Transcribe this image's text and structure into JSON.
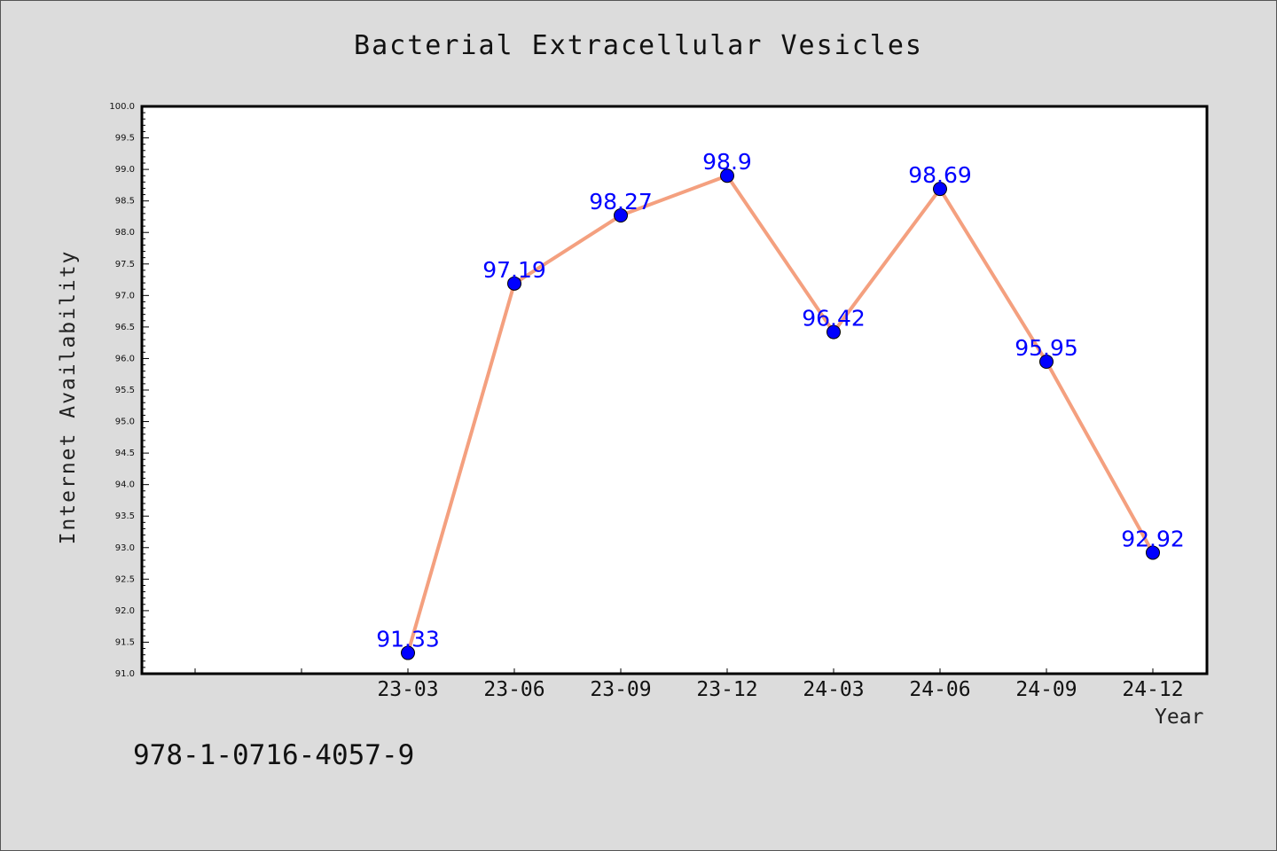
{
  "chart_data": {
    "type": "line",
    "title": "Bacterial Extracellular Vesicles",
    "xlabel": "Year",
    "ylabel": "Internet Availability",
    "categories": [
      "23-03",
      "23-06",
      "23-09",
      "23-12",
      "24-03",
      "24-06",
      "24-09",
      "24-12"
    ],
    "series": [
      {
        "values": [
          91.33,
          97.19,
          98.27,
          98.9,
          96.42,
          98.69,
          95.95,
          92.92
        ],
        "line_color": "#f4a07f",
        "marker_color": "#0000ff"
      }
    ],
    "ylim": [
      91.0,
      100.0
    ],
    "ytick_step": 0.5,
    "grid": false,
    "legend": "none"
  },
  "footer": {
    "code": "978-1-0716-4057-9"
  }
}
